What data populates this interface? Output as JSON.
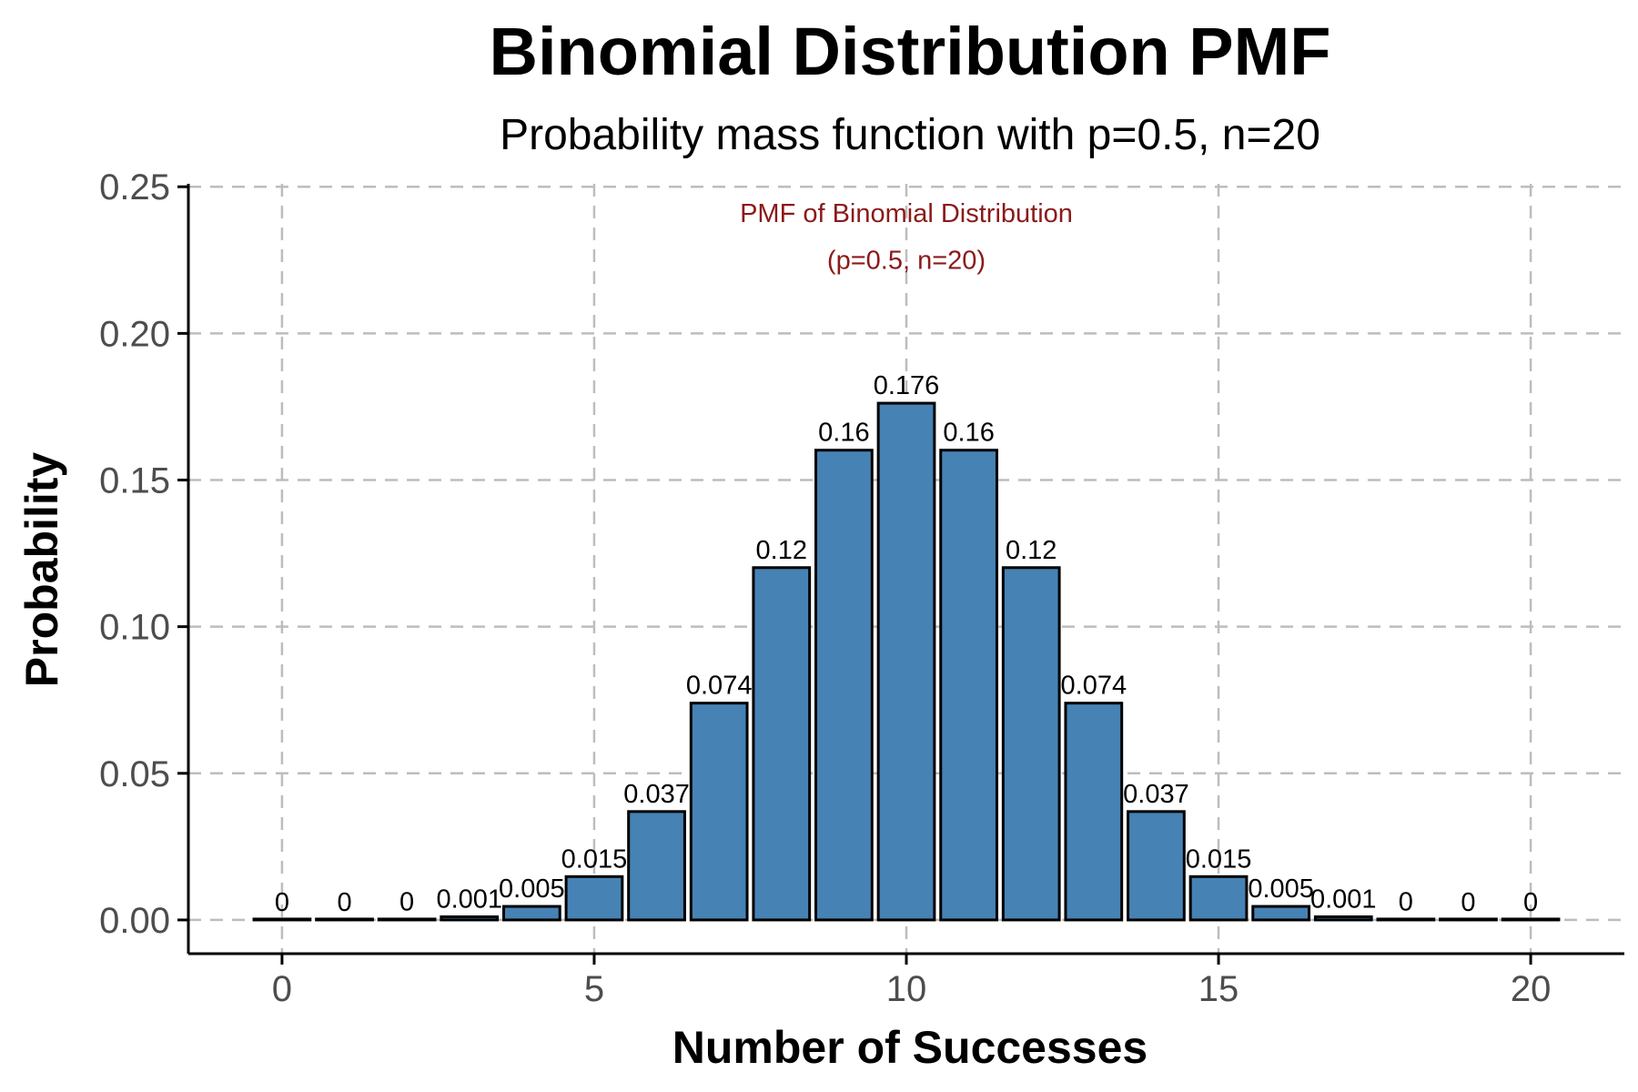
{
  "chart_data": {
    "type": "bar",
    "title": "Binomial Distribution PMF",
    "subtitle": "Probability mass function with p=0.5, n=20",
    "xlabel": "Number of Successes",
    "ylabel": "Probability",
    "x": [
      0,
      1,
      2,
      3,
      4,
      5,
      6,
      7,
      8,
      9,
      10,
      11,
      12,
      13,
      14,
      15,
      16,
      17,
      18,
      19,
      20
    ],
    "values": [
      1e-06,
      2e-05,
      0.0002,
      0.001087,
      0.004621,
      0.014786,
      0.036964,
      0.073929,
      0.120134,
      0.160179,
      0.176197,
      0.160179,
      0.120134,
      0.073929,
      0.036964,
      0.014786,
      0.004621,
      0.001087,
      0.0002,
      2e-05,
      1e-06
    ],
    "data_labels": [
      "0",
      "0",
      "0",
      "0.001",
      "0.005",
      "0.015",
      "0.037",
      "0.074",
      "0.12",
      "0.16",
      "0.176",
      "0.16",
      "0.12",
      "0.074",
      "0.037",
      "0.015",
      "0.005",
      "0.001",
      "0",
      "0",
      "0"
    ],
    "xlim": [
      -1.5,
      21.5
    ],
    "ylim": [
      -0.0115,
      0.251
    ],
    "x_ticks": [
      0,
      5,
      10,
      15,
      20
    ],
    "x_tick_labels": [
      "0",
      "5",
      "10",
      "15",
      "20"
    ],
    "y_ticks": [
      0,
      0.05,
      0.1,
      0.15,
      0.2,
      0.25
    ],
    "y_tick_labels": [
      "0.00",
      "0.05",
      "0.10",
      "0.15",
      "0.20",
      "0.25"
    ],
    "grid": true,
    "legend": "none",
    "annotation": {
      "lines": [
        "PMF of Binomial Distribution",
        "(p=0.5, n=20)"
      ],
      "x": 10,
      "y": [
        0.238,
        0.222
      ],
      "color": "#8b1a1a"
    },
    "bar_color": "#4682b4",
    "bar_outline_color": "#000000"
  }
}
